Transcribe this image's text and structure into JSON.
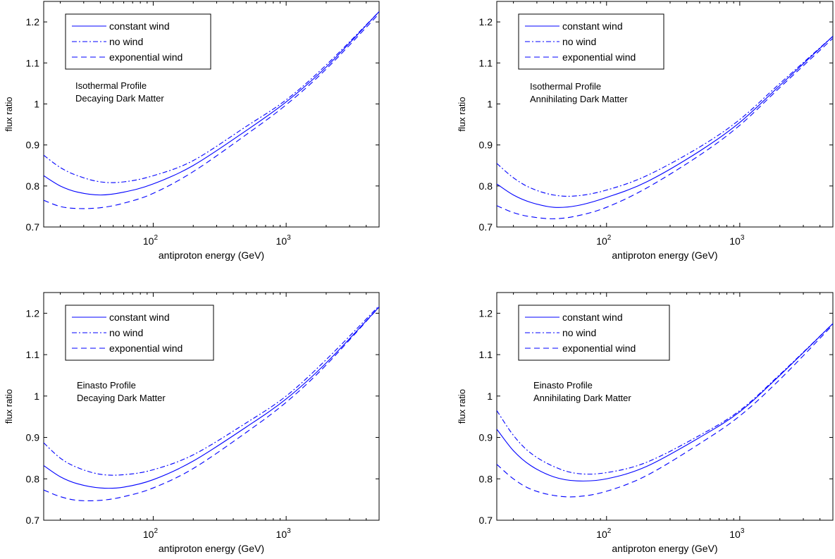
{
  "figure": {
    "line_color": "#0000ff"
  },
  "chart_data": [
    {
      "type": "line",
      "xlabel": "antiproton energy (GeV)",
      "ylabel": "flux ratio",
      "xscale": "log",
      "xlim": [
        15,
        5000
      ],
      "ylim": [
        0.7,
        1.25
      ],
      "xticks": [
        {
          "base": "10",
          "exp": "2"
        },
        {
          "base": "10",
          "exp": "3"
        }
      ],
      "yticks": [
        "0.7",
        "0.8",
        "0.9",
        "1",
        "1.1",
        "1.2"
      ],
      "legend_position": "top-left",
      "annotation": [
        "Isothermal Profile",
        "Decaying Dark Matter"
      ],
      "series": [
        {
          "name": "constant wind",
          "style": "solid",
          "x": [
            15,
            20,
            27,
            40,
            60,
            100,
            200,
            500,
            1000,
            2000,
            5000
          ],
          "y": [
            0.825,
            0.8,
            0.785,
            0.778,
            0.785,
            0.805,
            0.85,
            0.935,
            1.005,
            1.09,
            1.225
          ]
        },
        {
          "name": "no wind",
          "style": "dashdot",
          "x": [
            15,
            20,
            27,
            40,
            60,
            100,
            200,
            500,
            1000,
            2000,
            5000
          ],
          "y": [
            0.875,
            0.845,
            0.825,
            0.81,
            0.81,
            0.825,
            0.862,
            0.945,
            1.01,
            1.095,
            1.225
          ]
        },
        {
          "name": "exponential wind",
          "style": "dashed",
          "x": [
            15,
            20,
            27,
            40,
            60,
            100,
            200,
            500,
            1000,
            2000,
            5000
          ],
          "y": [
            0.765,
            0.75,
            0.745,
            0.747,
            0.758,
            0.782,
            0.835,
            0.925,
            0.998,
            1.085,
            1.22
          ]
        }
      ]
    },
    {
      "type": "line",
      "xlabel": "antiproton energy (GeV)",
      "ylabel": "flux ratio",
      "xscale": "log",
      "xlim": [
        15,
        5000
      ],
      "ylim": [
        0.7,
        1.25
      ],
      "xticks": [
        {
          "base": "10",
          "exp": "2"
        },
        {
          "base": "10",
          "exp": "3"
        }
      ],
      "yticks": [
        "0.7",
        "0.8",
        "0.9",
        "1",
        "1.1",
        "1.2"
      ],
      "legend_position": "top-left",
      "annotation": [
        "Isothermal Profile",
        "Annihilating Dark Matter"
      ],
      "series": [
        {
          "name": "constant wind",
          "style": "solid",
          "x": [
            15,
            20,
            27,
            40,
            60,
            100,
            200,
            500,
            1000,
            2000,
            5000
          ],
          "y": [
            0.805,
            0.778,
            0.76,
            0.748,
            0.752,
            0.772,
            0.81,
            0.885,
            0.955,
            1.045,
            1.165
          ]
        },
        {
          "name": "no wind",
          "style": "dashdot",
          "x": [
            15,
            20,
            27,
            40,
            60,
            100,
            200,
            500,
            1000,
            2000,
            5000
          ],
          "y": [
            0.855,
            0.82,
            0.795,
            0.778,
            0.776,
            0.79,
            0.825,
            0.895,
            0.962,
            1.05,
            1.165
          ]
        },
        {
          "name": "exponential wind",
          "style": "dashed",
          "x": [
            15,
            20,
            27,
            40,
            60,
            100,
            200,
            500,
            1000,
            2000,
            5000
          ],
          "y": [
            0.752,
            0.735,
            0.725,
            0.72,
            0.727,
            0.748,
            0.795,
            0.875,
            0.948,
            1.04,
            1.16
          ]
        }
      ]
    },
    {
      "type": "line",
      "xlabel": "antiproton energy (GeV)",
      "ylabel": "flux ratio",
      "xscale": "log",
      "xlim": [
        15,
        5000
      ],
      "ylim": [
        0.7,
        1.25
      ],
      "xticks": [
        {
          "base": "10",
          "exp": "2"
        },
        {
          "base": "10",
          "exp": "3"
        }
      ],
      "yticks": [
        "0.7",
        "0.8",
        "0.9",
        "1",
        "1.1",
        "1.2"
      ],
      "legend_position": "top-left",
      "annotation": [
        "Einasto Profile",
        "Decaying Dark Matter"
      ],
      "series": [
        {
          "name": "constant wind",
          "style": "solid",
          "x": [
            15,
            20,
            27,
            40,
            60,
            100,
            200,
            500,
            1000,
            2000,
            5000
          ],
          "y": [
            0.832,
            0.805,
            0.788,
            0.778,
            0.78,
            0.798,
            0.843,
            0.925,
            0.993,
            1.08,
            1.215
          ]
        },
        {
          "name": "no wind",
          "style": "dashdot",
          "x": [
            15,
            20,
            27,
            40,
            60,
            100,
            200,
            500,
            1000,
            2000,
            5000
          ],
          "y": [
            0.887,
            0.85,
            0.827,
            0.811,
            0.81,
            0.822,
            0.858,
            0.935,
            1.0,
            1.088,
            1.218
          ]
        },
        {
          "name": "exponential wind",
          "style": "dashed",
          "x": [
            15,
            20,
            27,
            40,
            60,
            100,
            200,
            500,
            1000,
            2000,
            5000
          ],
          "y": [
            0.773,
            0.757,
            0.748,
            0.748,
            0.757,
            0.778,
            0.825,
            0.912,
            0.985,
            1.075,
            1.215
          ]
        }
      ]
    },
    {
      "type": "line",
      "xlabel": "antiproton energy (GeV)",
      "ylabel": "flux ratio",
      "xscale": "log",
      "xlim": [
        15,
        5000
      ],
      "ylim": [
        0.7,
        1.25
      ],
      "xticks": [
        {
          "base": "10",
          "exp": "2"
        },
        {
          "base": "10",
          "exp": "3"
        }
      ],
      "yticks": [
        "0.7",
        "0.8",
        "0.9",
        "1",
        "1.1",
        "1.2"
      ],
      "legend_position": "top-left",
      "annotation": [
        "Einasto Profile",
        "Annihilating Dark Matter"
      ],
      "series": [
        {
          "name": "constant wind",
          "style": "solid",
          "x": [
            15,
            20,
            27,
            40,
            60,
            100,
            200,
            500,
            1000,
            2000,
            5000
          ],
          "y": [
            0.92,
            0.868,
            0.832,
            0.805,
            0.795,
            0.8,
            0.83,
            0.9,
            0.962,
            1.05,
            1.175
          ]
        },
        {
          "name": "no wind",
          "style": "dashdot",
          "x": [
            15,
            20,
            27,
            40,
            60,
            100,
            200,
            500,
            1000,
            2000,
            5000
          ],
          "y": [
            0.965,
            0.905,
            0.862,
            0.83,
            0.813,
            0.815,
            0.84,
            0.905,
            0.965,
            1.052,
            1.175
          ]
        },
        {
          "name": "exponential wind",
          "style": "dashed",
          "x": [
            15,
            20,
            27,
            40,
            60,
            100,
            200,
            500,
            1000,
            2000,
            5000
          ],
          "y": [
            0.835,
            0.8,
            0.775,
            0.76,
            0.757,
            0.77,
            0.808,
            0.885,
            0.952,
            1.04,
            1.172
          ]
        }
      ]
    }
  ]
}
